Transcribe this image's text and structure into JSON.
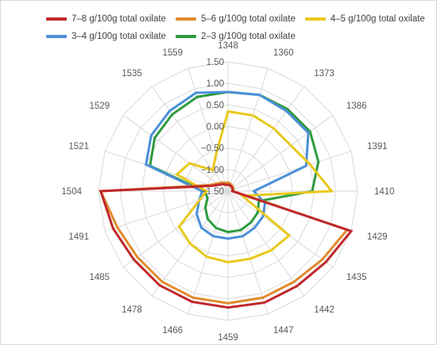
{
  "chart_data": {
    "type": "radar",
    "categories": [
      "1348",
      "1360",
      "1373",
      "1386",
      "1391",
      "1410",
      "1429",
      "1435",
      "1442",
      "1447",
      "1459",
      "1466",
      "1478",
      "1485",
      "1491",
      "1504",
      "1521",
      "1529",
      "1535",
      "1559"
    ],
    "rlim": [
      -1.5,
      1.5
    ],
    "ticks": [
      -1.5,
      -1.0,
      -0.5,
      0.0,
      0.5,
      1.0,
      1.5
    ],
    "tick_labels": [
      "−1.50",
      "−1.00",
      "−0.50",
      "0.00",
      "0.50",
      "1.00",
      "1.50"
    ],
    "grid": true,
    "legend_position": "top",
    "series": [
      {
        "name": "7–8 g/100g total oxilate",
        "color": "#c0282b",
        "values": [
          -1.35,
          -1.36,
          -1.37,
          -1.38,
          -1.39,
          -1.4,
          1.5,
          1.3,
          1.22,
          1.22,
          1.2,
          1.2,
          1.2,
          1.2,
          1.3,
          1.45,
          -1.1,
          -1.25,
          -1.3,
          -1.35
        ]
      },
      {
        "name": "5–6 g/100g total oxilate",
        "color": "#e08a2c",
        "values": [
          -1.3,
          -1.32,
          -1.34,
          -1.35,
          -1.37,
          -1.38,
          1.4,
          1.2,
          1.1,
          1.1,
          1.1,
          1.1,
          1.1,
          1.1,
          1.2,
          1.45,
          -1.05,
          -1.2,
          -1.25,
          -1.3
        ]
      },
      {
        "name": "4–5 g/100g total oxilate",
        "color": "#e8c81c",
        "values": [
          0.35,
          0.35,
          0.3,
          0.3,
          0.5,
          0.9,
          -1.15,
          0.25,
          0.2,
          0.15,
          0.15,
          0.1,
          0.0,
          -0.1,
          -0.8,
          -1.0,
          -0.25,
          -0.4,
          -0.9,
          -0.6
        ]
      },
      {
        "name": "3–4 g/100g total oxilate",
        "color": "#4a90d9",
        "values": [
          0.8,
          0.85,
          0.8,
          0.8,
          0.4,
          -0.9,
          -0.6,
          -0.5,
          -0.45,
          -0.4,
          -0.4,
          -0.4,
          -0.45,
          -0.6,
          -0.8,
          -0.9,
          0.5,
          0.7,
          0.8,
          0.9
        ]
      },
      {
        "name": "2–3 g/100g total oxilate",
        "color": "#2e9b3e",
        "values": [
          0.8,
          0.85,
          0.85,
          0.85,
          0.7,
          0.45,
          -0.75,
          -0.65,
          -0.6,
          -0.55,
          -0.55,
          -0.6,
          -0.7,
          -0.85,
          -1.0,
          -0.95,
          0.4,
          0.6,
          0.7,
          0.8
        ]
      }
    ]
  }
}
